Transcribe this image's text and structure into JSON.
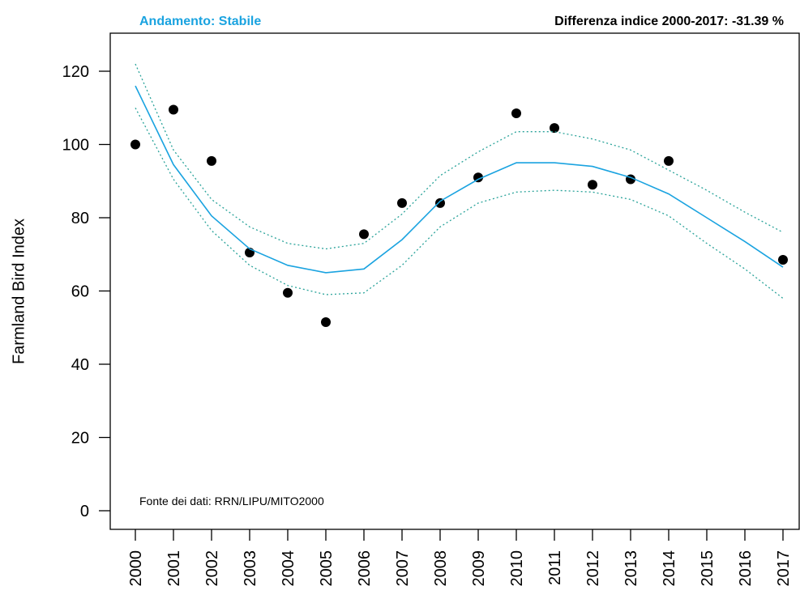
{
  "header": {
    "trend_label": "Andamento:",
    "trend_value": "Stabile",
    "diff_label": "Differenza indice 2000-2017:",
    "diff_value": "-31.39 %"
  },
  "source_note": "Fonte dei dati: RRN/LIPU/MITO2000",
  "colors": {
    "trend_line": "#1aa3e0",
    "confidence_band": "#2aa39a",
    "points": "#000000",
    "header_accent": "#1aa3e0"
  },
  "chart_data": {
    "type": "scatter",
    "title": "",
    "xlabel": "",
    "ylabel": "Farmland Bird Index",
    "x_ticks": [
      "2000",
      "2001",
      "2002",
      "2003",
      "2004",
      "2005",
      "2006",
      "2007",
      "2008",
      "2009",
      "2010",
      "2011",
      "2012",
      "2013",
      "2014",
      "2015",
      "2016",
      "2017"
    ],
    "y_ticks": [
      0,
      20,
      40,
      60,
      80,
      100,
      120
    ],
    "xlim": [
      2000,
      2017
    ],
    "ylim": [
      0,
      120
    ],
    "grid": false,
    "series": [
      {
        "kind": "points",
        "x": [
          2000,
          2001,
          2002,
          2003,
          2004,
          2005,
          2006,
          2007,
          2008,
          2009,
          2010,
          2011,
          2012,
          2013,
          2014,
          2017
        ],
        "y": [
          100,
          109.5,
          95.5,
          70.5,
          59.5,
          51.5,
          75.5,
          84,
          84,
          91,
          108.5,
          104.5,
          89,
          90.5,
          95.5,
          68.5
        ]
      },
      {
        "kind": "trend",
        "x": [
          2000,
          2001,
          2002,
          2003,
          2004,
          2005,
          2006,
          2007,
          2008,
          2009,
          2010,
          2011,
          2012,
          2013,
          2014,
          2015,
          2016,
          2017
        ],
        "y": [
          116,
          94.5,
          80.5,
          71.5,
          67,
          65,
          66,
          74,
          84.5,
          90.5,
          95,
          95,
          94,
          91,
          86.5,
          80,
          73.5,
          66.5
        ]
      },
      {
        "kind": "ci_upper",
        "x": [
          2000,
          2001,
          2002,
          2003,
          2004,
          2005,
          2006,
          2007,
          2008,
          2009,
          2010,
          2011,
          2012,
          2013,
          2014,
          2015,
          2016,
          2017
        ],
        "y": [
          122,
          98.5,
          85,
          77.5,
          73,
          71.5,
          73,
          81,
          91.5,
          98,
          103.5,
          103.5,
          101.5,
          98.5,
          93,
          87.5,
          81.5,
          76
        ]
      },
      {
        "kind": "ci_lower",
        "x": [
          2000,
          2001,
          2002,
          2003,
          2004,
          2005,
          2006,
          2007,
          2008,
          2009,
          2010,
          2011,
          2012,
          2013,
          2014,
          2015,
          2016,
          2017
        ],
        "y": [
          110,
          90.5,
          76.5,
          67,
          61.5,
          59,
          59.5,
          67,
          77.5,
          84,
          87,
          87.5,
          87,
          85,
          80.5,
          73,
          66,
          58
        ]
      }
    ]
  }
}
